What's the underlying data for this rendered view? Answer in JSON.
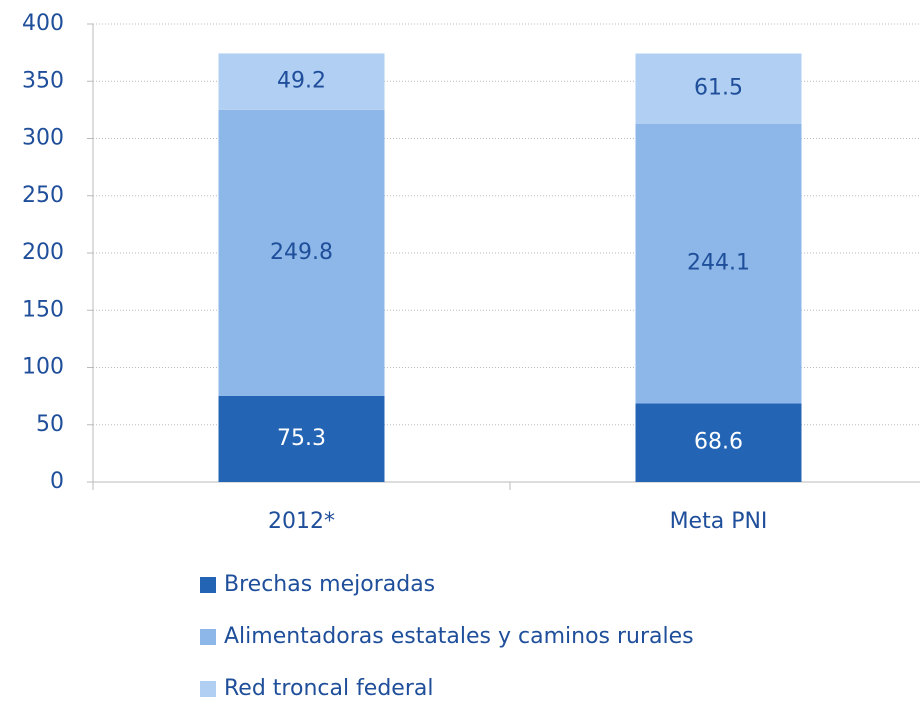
{
  "chart_data": {
    "type": "stacked_bar",
    "categories": [
      "2012*",
      "Meta PNI"
    ],
    "series": [
      {
        "name": "Brechas mejoradas",
        "color": "#2464b4",
        "values": [
          75.3,
          68.6
        ]
      },
      {
        "name": "Alimentadoras estatales y caminos rurales",
        "color": "#8db7e8",
        "values": [
          249.8,
          244.1
        ]
      },
      {
        "name": "Red troncal federal",
        "color": "#b0cff2",
        "values": [
          49.2,
          61.5
        ]
      }
    ],
    "ylim": [
      0,
      400
    ],
    "yticks": [
      0,
      50,
      100,
      150,
      200,
      250,
      300,
      350,
      400
    ],
    "grid": true,
    "legend": "bottom"
  }
}
